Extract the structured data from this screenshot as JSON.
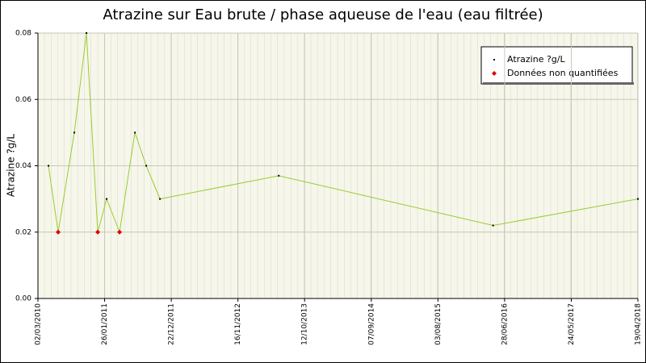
{
  "chart_data": {
    "type": "line",
    "title": "Atrazine sur Eau brute / phase aqueuse de l'eau (eau filtrée)",
    "y_label": "Atrazine ?g/L",
    "xlim": [
      "02/03/2010",
      "19/04/2018"
    ],
    "xticks": [
      "02/03/2010",
      "26/01/2011",
      "22/12/2011",
      "16/11/2012",
      "12/10/2013",
      "07/09/2014",
      "03/08/2015",
      "28/06/2016",
      "24/05/2017",
      "19/04/2018"
    ],
    "ylim": [
      0,
      0.08
    ],
    "yticks": [
      {
        "value": 0,
        "label": "0.00"
      },
      0.02,
      0.04,
      0.06,
      0.08
    ],
    "grid": true,
    "legend_position": "upper right",
    "series": [
      {
        "name": "Atrazine ?g/L",
        "color": "#000000",
        "line_color": "#99cc33",
        "x": [
          "23/04/2010",
          "10/06/2010",
          "29/08/2010",
          "28/10/2010",
          "23/12/2010",
          "05/02/2011",
          "10/04/2011",
          "25/06/2011",
          "20/08/2011",
          "27/10/2011",
          "06/06/2013",
          "02/05/2016",
          "19/04/2018"
        ],
        "values": [
          0.04,
          0.02,
          0.05,
          0.08,
          0.02,
          0.03,
          0.02,
          0.05,
          0.04,
          0.03,
          0.037,
          0.022,
          0.03
        ]
      },
      {
        "name": "Données non quantifiées",
        "color": "#dd0000",
        "x": [
          "10/06/2010",
          "23/12/2010",
          "10/04/2011"
        ],
        "values": [
          0.02,
          0.02,
          0.02
        ]
      }
    ]
  }
}
